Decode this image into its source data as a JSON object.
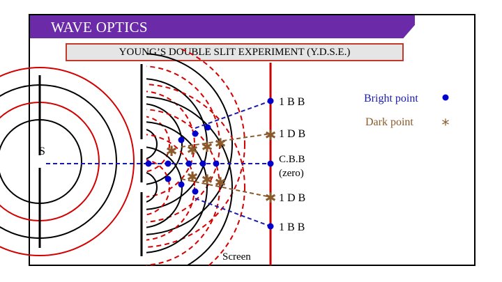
{
  "banner": {
    "title": "WAVE OPTICS"
  },
  "subtitle": "YOUNG’S DOUBLE SLIT EXPERIMENT (Y.D.S.E.)",
  "diagram": {
    "source_label": "S",
    "screen_label": "Screen",
    "fringe_labels": [
      "1 B B",
      "1 D B",
      "C.B.B",
      "(zero)",
      "1 D B",
      "1 B B"
    ],
    "legend": {
      "bright": "Bright point",
      "dark": "Dark point"
    },
    "colors": {
      "crest": "#000000",
      "trough": "#d40000",
      "screen": "#cc0000",
      "bright": "#0000cc",
      "dark": "#8b5a2b",
      "banner": "#6b2aa7"
    }
  }
}
